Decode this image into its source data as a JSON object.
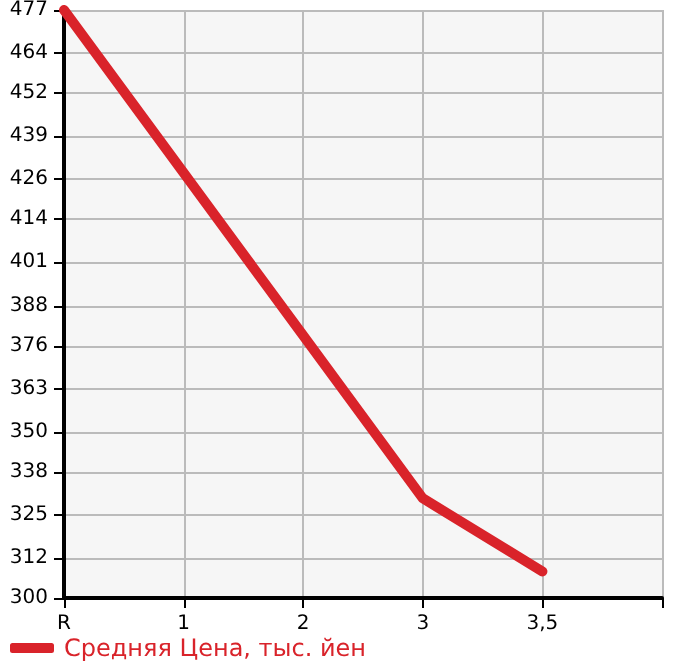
{
  "chart_data": {
    "type": "line",
    "categories": [
      "R",
      "1",
      "2",
      "3",
      "3,5",
      null
    ],
    "series": [
      {
        "name": "Средняя Цена, тыс. йен",
        "color": "#d9232a",
        "values": [
          477,
          428,
          379,
          330,
          308,
          null
        ]
      }
    ],
    "ylim": [
      300,
      477
    ],
    "yticks": [
      300,
      312,
      325,
      338,
      350,
      363,
      376,
      388,
      401,
      414,
      426,
      439,
      452,
      464,
      477
    ],
    "grid": true,
    "legend": "bottom left",
    "marker": "none",
    "line_style": "solid"
  }
}
